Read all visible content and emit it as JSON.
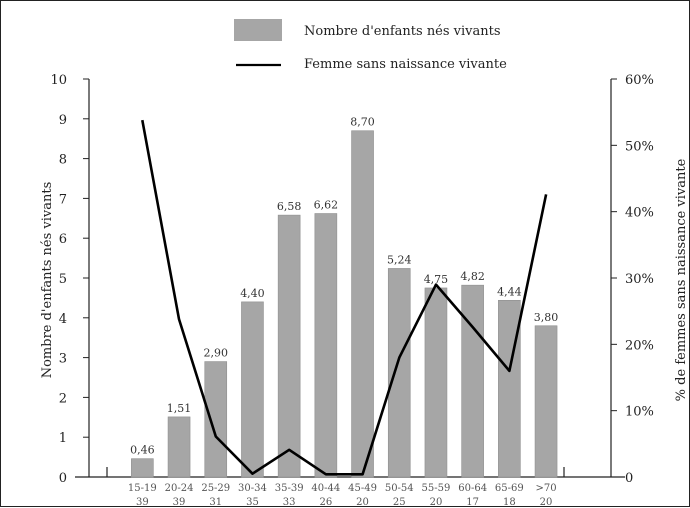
{
  "chart_data": {
    "type": "bar",
    "categories": [
      "15-19",
      "20-24",
      "25-29",
      "30-34",
      "35-39",
      "40-44",
      "45-49",
      "50-54",
      "55-59",
      "60-64",
      "65-69",
      ">70"
    ],
    "counts": [
      "39",
      "39",
      "31",
      "35",
      "33",
      "26",
      "20",
      "25",
      "20",
      "17",
      "18",
      "20"
    ],
    "series": [
      {
        "name": "Nombre d'enfants nés vivants",
        "type": "bar",
        "axis": "left",
        "color": "#a6a6a6",
        "values": [
          0.46,
          1.51,
          2.9,
          4.4,
          6.58,
          6.62,
          8.7,
          5.24,
          4.75,
          4.82,
          4.44,
          3.8
        ],
        "labels": [
          "0,46",
          "1,51",
          "2,90",
          "4,40",
          "6,58",
          "6,62",
          "8,70",
          "5,24",
          "4,75",
          "4,82",
          "4,44",
          "3,80"
        ]
      },
      {
        "name": "Femme sans naissance vivante",
        "type": "line",
        "axis": "right",
        "color": "#000000",
        "values": [
          53.8,
          23.8,
          6.1,
          0.5,
          4.1,
          0.4,
          0.4,
          18.0,
          29.0,
          22.6,
          16.0,
          42.6
        ]
      }
    ],
    "y_left": {
      "label": "Nombre d'enfants nés vivants",
      "range": [
        0,
        10
      ],
      "ticks": [
        "0",
        "1",
        "2",
        "3",
        "4",
        "5",
        "6",
        "7",
        "8",
        "9",
        "10"
      ]
    },
    "y_right": {
      "label": "% de femmes sans naissance vivante",
      "range": [
        0,
        60
      ],
      "ticks": [
        "0",
        "10%",
        "20%",
        "30%",
        "40%",
        "50%",
        "60%"
      ]
    },
    "legend": "top-center",
    "grid": false
  }
}
